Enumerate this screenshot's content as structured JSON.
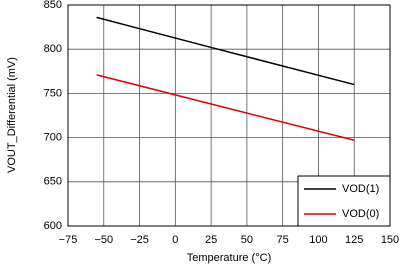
{
  "chart_data": {
    "type": "line",
    "x_label": "Temperature (°C)",
    "y_label": "VOUT_Differential (mV)",
    "x": [
      -55,
      25,
      125
    ],
    "series": [
      {
        "name": "VOD(1)",
        "color": "#000000",
        "values": [
          836,
          802,
          760
        ]
      },
      {
        "name": "VOD(0)",
        "color": "#e00000",
        "values": [
          771,
          738,
          697
        ]
      }
    ],
    "xlim": [
      -75,
      150
    ],
    "xticks": [
      {
        "value": -75,
        "label": "−75"
      },
      {
        "value": -50,
        "label": "−50"
      },
      {
        "value": -25,
        "label": "−25"
      },
      0,
      25,
      50,
      75,
      100,
      125,
      150
    ],
    "ylim": [
      600,
      850
    ],
    "yticks": [
      600,
      650,
      700,
      750,
      800,
      850
    ],
    "grid": true,
    "legend": "lower right"
  }
}
